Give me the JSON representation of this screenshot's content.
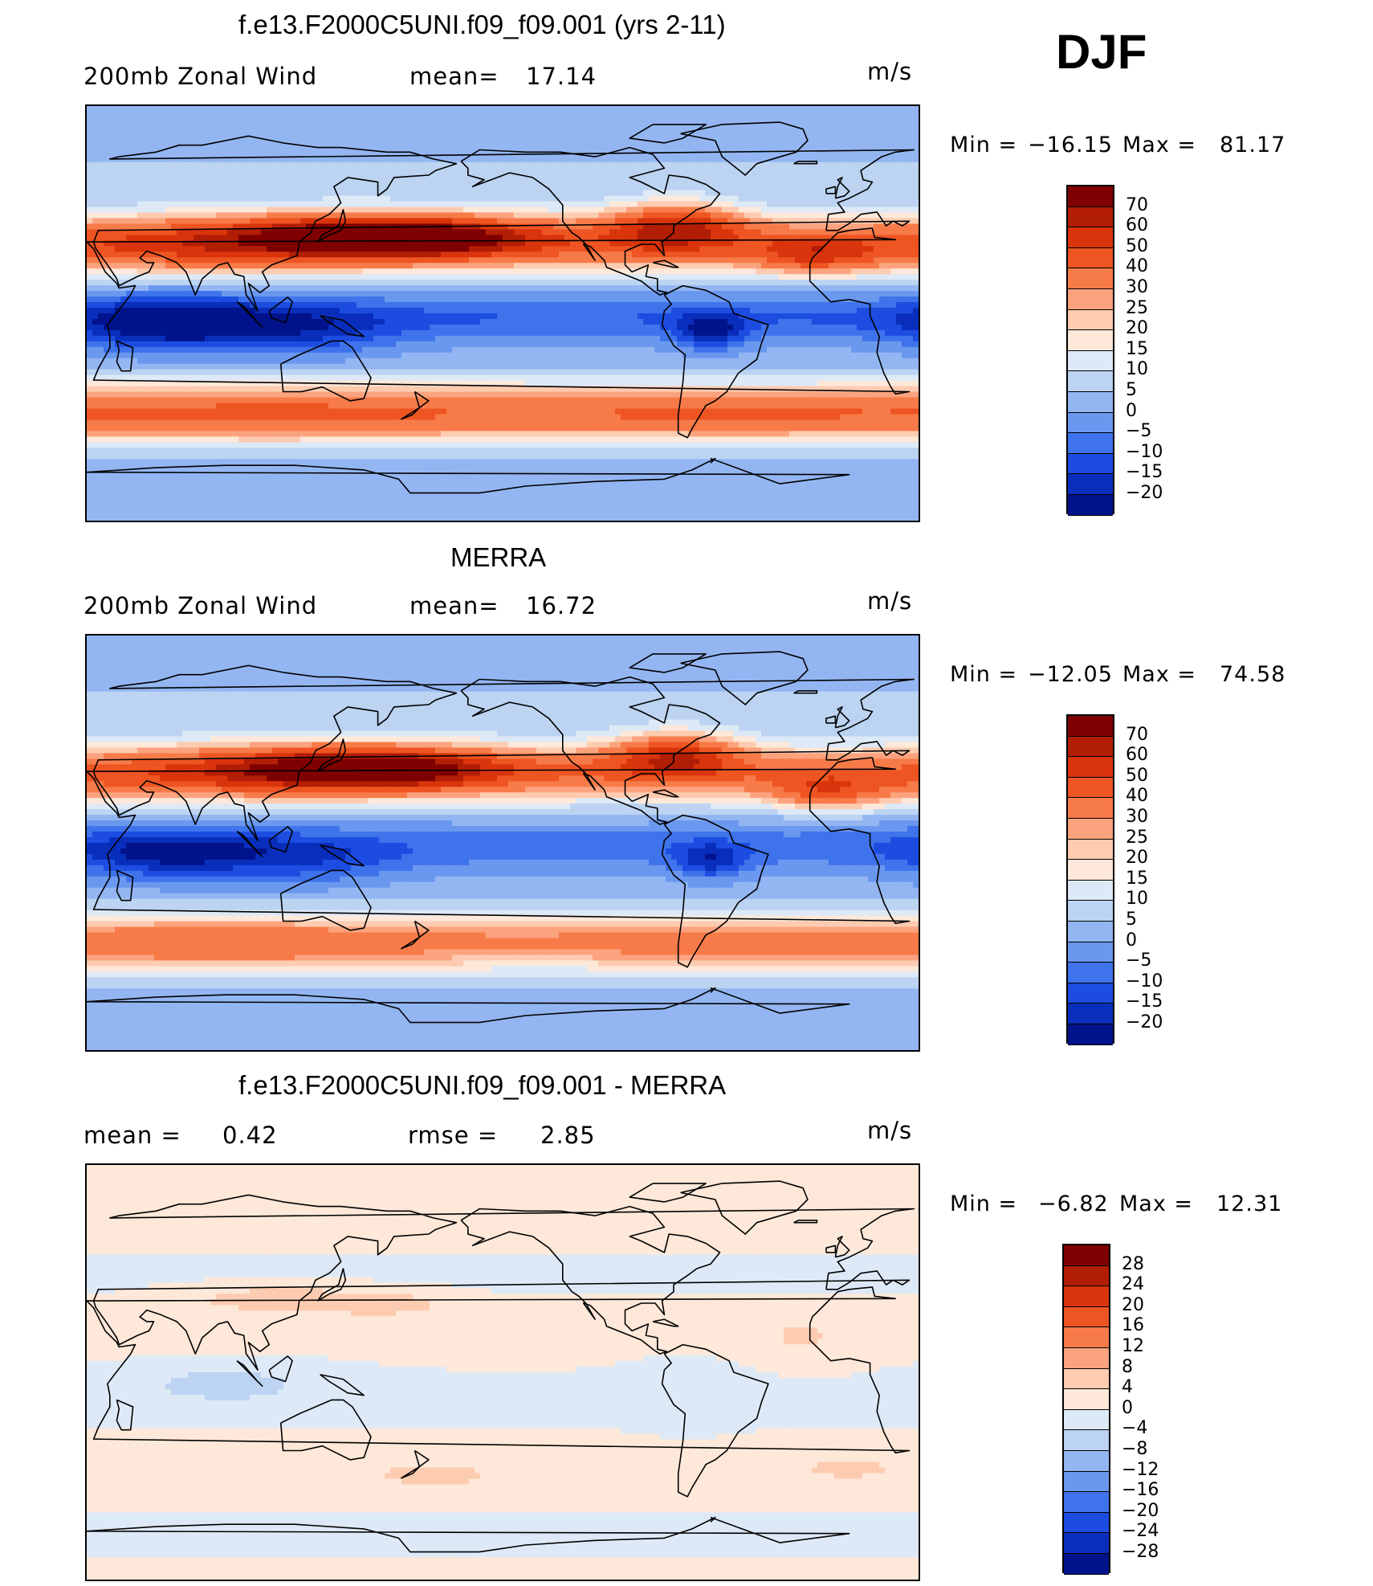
{
  "season": "DJF",
  "panels": [
    {
      "title": "f.e13.F2000C5UNI.f09_f09.001 (yrs 2-11)",
      "variable": "200mb Zonal Wind",
      "mean_label": "mean=",
      "mean_value": "17.14",
      "units": "m/s",
      "min_label": "Min =",
      "min_value": "−16.15",
      "max_label": "Max =",
      "max_value": "81.17"
    },
    {
      "title": "MERRA",
      "variable": "200mb Zonal Wind",
      "mean_label": "mean=",
      "mean_value": "16.72",
      "units": "m/s",
      "min_label": "Min =",
      "min_value": "−12.05",
      "max_label": "Max =",
      "max_value": "74.58"
    },
    {
      "title": "f.e13.F2000C5UNI.f09_f09.001 - MERRA",
      "mean_label": "mean =",
      "mean_value": "0.42",
      "rmse_label": "rmse =",
      "rmse_value": "2.85",
      "units": "m/s",
      "min_label": "Min =",
      "min_value": "−6.82",
      "max_label": "Max =",
      "max_value": "12.31"
    }
  ],
  "colorbars": [
    {
      "labels": [
        "70",
        "60",
        "50",
        "40",
        "30",
        "25",
        "20",
        "15",
        "10",
        "5",
        "0",
        "−5",
        "−10",
        "−15",
        "−20"
      ],
      "colors": [
        "#7f0000",
        "#b21e05",
        "#d9340b",
        "#ee5522",
        "#f77b49",
        "#fba37e",
        "#fdcbb0",
        "#fde8d9",
        "#dde9f6",
        "#bcd3f2",
        "#93b6f2",
        "#6a98ef",
        "#3f73ec",
        "#1c4de0",
        "#0a2ebc",
        "#00138b"
      ]
    },
    {
      "labels": [
        "70",
        "60",
        "50",
        "40",
        "30",
        "25",
        "20",
        "15",
        "10",
        "5",
        "0",
        "−5",
        "−10",
        "−15",
        "−20"
      ],
      "colors": [
        "#7f0000",
        "#b21e05",
        "#d9340b",
        "#ee5522",
        "#f77b49",
        "#fba37e",
        "#fdcbb0",
        "#fde8d9",
        "#dde9f6",
        "#bcd3f2",
        "#93b6f2",
        "#6a98ef",
        "#3f73ec",
        "#1c4de0",
        "#0a2ebc",
        "#00138b"
      ]
    },
    {
      "labels": [
        "28",
        "24",
        "20",
        "16",
        "12",
        "8",
        "4",
        "0",
        "−4",
        "−8",
        "−12",
        "−16",
        "−20",
        "−24",
        "−28"
      ],
      "colors": [
        "#7f0000",
        "#b21e05",
        "#d9340b",
        "#ee5522",
        "#f77b49",
        "#fba37e",
        "#fdcbb0",
        "#fde8d9",
        "#dde9f6",
        "#bcd3f2",
        "#93b6f2",
        "#6a98ef",
        "#3f73ec",
        "#1c4de0",
        "#0a2ebc",
        "#00138b"
      ]
    }
  ],
  "chart_data": [
    {
      "type": "heatmap",
      "title": "f.e13.F2000C5UNI.f09_f09.001 (yrs 2-11)",
      "variable": "200mb Zonal Wind",
      "units": "m/s",
      "x_range": [
        30,
        390
      ],
      "y_range": [
        -90,
        90
      ],
      "mean": 17.14,
      "min": -16.15,
      "max": 81.17,
      "levels": [
        -20,
        -15,
        -10,
        -5,
        0,
        5,
        10,
        15,
        20,
        25,
        30,
        40,
        50,
        60,
        70
      ],
      "blobs": [
        {
          "lon": 160,
          "lat": 33,
          "w": 55,
          "h": 8,
          "v": 60
        },
        {
          "lon": 140,
          "lat": 35,
          "w": 95,
          "h": 12,
          "v": 15
        },
        {
          "lon": 70,
          "lat": 28,
          "w": 60,
          "h": 10,
          "v": 12
        },
        {
          "lon": 285,
          "lat": 38,
          "w": 28,
          "h": 10,
          "v": 40
        },
        {
          "lon": 345,
          "lat": 25,
          "w": 25,
          "h": 8,
          "v": 25
        },
        {
          "lon": 65,
          "lat": -5,
          "w": 40,
          "h": 12,
          "v": -20
        },
        {
          "lon": 125,
          "lat": -8,
          "w": 40,
          "h": 12,
          "v": -12
        },
        {
          "lon": 300,
          "lat": -8,
          "w": 15,
          "h": 8,
          "v": -18
        },
        {
          "lon": 110,
          "lat": -45,
          "w": 110,
          "h": 10,
          "v": 10
        },
        {
          "lon": 300,
          "lat": -45,
          "w": 60,
          "h": 8,
          "v": 8
        }
      ]
    },
    {
      "type": "heatmap",
      "title": "MERRA",
      "variable": "200mb Zonal Wind",
      "units": "m/s",
      "x_range": [
        30,
        390
      ],
      "y_range": [
        -90,
        90
      ],
      "mean": 16.72,
      "min": -12.05,
      "max": 74.58,
      "levels": [
        -20,
        -15,
        -10,
        -5,
        0,
        5,
        10,
        15,
        20,
        25,
        30,
        40,
        50,
        60,
        70
      ],
      "blobs": [
        {
          "lon": 150,
          "lat": 32,
          "w": 50,
          "h": 8,
          "v": 52
        },
        {
          "lon": 140,
          "lat": 34,
          "w": 90,
          "h": 12,
          "v": 15
        },
        {
          "lon": 70,
          "lat": 28,
          "w": 60,
          "h": 10,
          "v": 10
        },
        {
          "lon": 285,
          "lat": 38,
          "w": 28,
          "h": 10,
          "v": 38
        },
        {
          "lon": 350,
          "lat": 22,
          "w": 25,
          "h": 8,
          "v": 25
        },
        {
          "lon": 65,
          "lat": -5,
          "w": 40,
          "h": 12,
          "v": -16
        },
        {
          "lon": 125,
          "lat": -8,
          "w": 40,
          "h": 12,
          "v": -10
        },
        {
          "lon": 300,
          "lat": -8,
          "w": 15,
          "h": 8,
          "v": -15
        },
        {
          "lon": 90,
          "lat": -45,
          "w": 80,
          "h": 10,
          "v": 10
        },
        {
          "lon": 300,
          "lat": -45,
          "w": 60,
          "h": 8,
          "v": 5
        }
      ]
    },
    {
      "type": "heatmap",
      "title": "f.e13.F2000C5UNI.f09_f09.001 - MERRA",
      "units": "m/s",
      "x_range": [
        30,
        390
      ],
      "y_range": [
        -90,
        90
      ],
      "mean": 0.42,
      "rmse": 2.85,
      "min": -6.82,
      "max": 12.31,
      "levels": [
        -28,
        -24,
        -20,
        -16,
        -12,
        -8,
        -4,
        0,
        4,
        8,
        12,
        16,
        20,
        24,
        28
      ],
      "blobs": [
        {
          "lon": 110,
          "lat": 32,
          "w": 40,
          "h": 6,
          "v": 6
        },
        {
          "lon": 160,
          "lat": 30,
          "w": 30,
          "h": 6,
          "v": 5
        },
        {
          "lon": 340,
          "lat": 15,
          "w": 25,
          "h": 12,
          "v": 3
        },
        {
          "lon": 90,
          "lat": -5,
          "w": 45,
          "h": 10,
          "v": -5
        },
        {
          "lon": 290,
          "lat": -10,
          "w": 25,
          "h": 15,
          "v": -3
        },
        {
          "lon": 180,
          "lat": -45,
          "w": 40,
          "h": 8,
          "v": 3
        },
        {
          "lon": 360,
          "lat": -42,
          "w": 30,
          "h": 6,
          "v": 3
        }
      ]
    }
  ]
}
